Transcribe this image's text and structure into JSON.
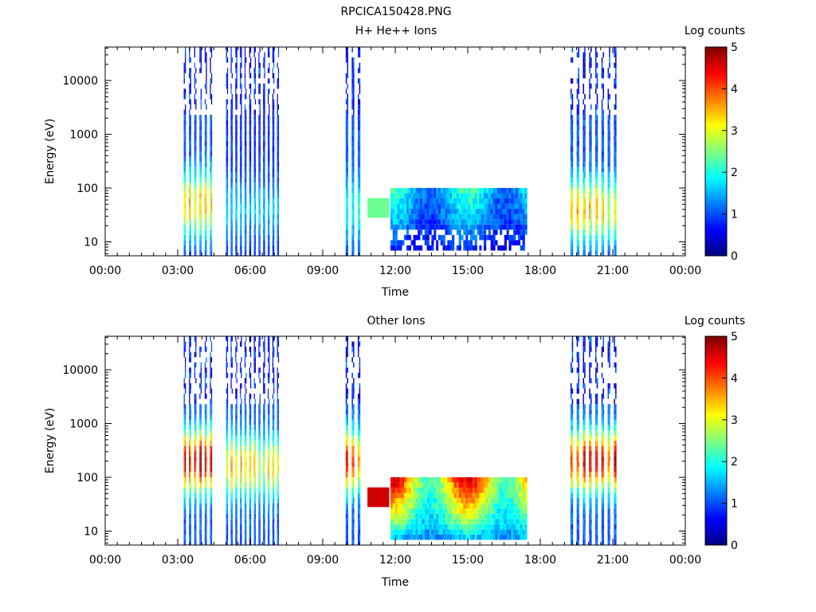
{
  "page_title": "RPCICA150428.PNG",
  "colormap": [
    "#00007f",
    "#0000ff",
    "#007fff",
    "#00ffff",
    "#7fff7f",
    "#ffff00",
    "#ff7f00",
    "#ff0000",
    "#7f0000"
  ],
  "chart_data": [
    {
      "type": "heatmap",
      "title": "H+ He++ Ions",
      "xlabel": "Time",
      "ylabel": "Energy (eV)",
      "xticks": [
        "00:00",
        "03:00",
        "06:00",
        "09:00",
        "12:00",
        "15:00",
        "18:00",
        "21:00",
        "00:00"
      ],
      "xlim_hours": [
        0,
        24
      ],
      "yscale": "log",
      "ylim": [
        5.5,
        42000
      ],
      "yticks": [
        10,
        100,
        1000,
        10000
      ],
      "ytick_labels": [
        "10",
        "100",
        "1000",
        "10000"
      ],
      "colorbar": {
        "label": "Log counts",
        "ticks": [
          "0",
          "1",
          "2",
          "3",
          "4",
          "5"
        ],
        "range": [
          0,
          5
        ]
      },
      "data_segments": [
        {
          "kind": "bursts",
          "t_start": 3.25,
          "t_end": 4.55,
          "n": 6,
          "emax": 40000,
          "peak_log_e": 1.7,
          "peak_val": 3.3,
          "floor_val": 1.0
        },
        {
          "kind": "bursts",
          "t_start": 5.0,
          "t_end": 7.3,
          "n": 12,
          "emax": 40000,
          "peak_log_e": 1.6,
          "peak_val": 1.6,
          "floor_val": 0.8
        },
        {
          "kind": "bursts",
          "t_start": 9.95,
          "t_end": 10.7,
          "n": 3,
          "emax": 40000,
          "peak_log_e": 1.6,
          "peak_val": 2.0,
          "floor_val": 1.0
        },
        {
          "kind": "block",
          "t_start": 10.85,
          "t_end": 11.75,
          "emin": 28,
          "emax": 65,
          "val": 2.4
        },
        {
          "kind": "dense",
          "t_start": 11.8,
          "t_end": 17.45,
          "emin": 6,
          "emax": 100,
          "peak_val": 2.3,
          "floor_val": 0.6,
          "sparse_low": true
        },
        {
          "kind": "bursts",
          "t_start": 19.25,
          "t_end": 21.3,
          "n": 8,
          "emax": 40000,
          "peak_log_e": 1.6,
          "peak_val": 3.2,
          "floor_val": 1.0
        }
      ]
    },
    {
      "type": "heatmap",
      "title": "Other Ions",
      "xlabel": "Time",
      "ylabel": "Energy (eV)",
      "xticks": [
        "00:00",
        "03:00",
        "06:00",
        "09:00",
        "12:00",
        "15:00",
        "18:00",
        "21:00",
        "00:00"
      ],
      "xlim_hours": [
        0,
        24
      ],
      "yscale": "log",
      "ylim": [
        5.5,
        42000
      ],
      "yticks": [
        10,
        100,
        1000,
        10000
      ],
      "ytick_labels": [
        "10",
        "100",
        "1000",
        "10000"
      ],
      "colorbar": {
        "label": "Log counts",
        "ticks": [
          "0",
          "1",
          "2",
          "3",
          "4",
          "5"
        ],
        "range": [
          0,
          5
        ]
      },
      "data_segments": [
        {
          "kind": "bursts",
          "t_start": 3.25,
          "t_end": 4.55,
          "n": 6,
          "emax": 40000,
          "peak_log_e": 2.3,
          "peak_val": 4.7,
          "floor_val": 1.0
        },
        {
          "kind": "bursts",
          "t_start": 5.0,
          "t_end": 7.3,
          "n": 12,
          "emax": 40000,
          "peak_log_e": 2.2,
          "peak_val": 3.2,
          "floor_val": 1.0
        },
        {
          "kind": "bursts",
          "t_start": 9.95,
          "t_end": 10.7,
          "n": 3,
          "emax": 40000,
          "peak_log_e": 2.3,
          "peak_val": 3.9,
          "floor_val": 1.0
        },
        {
          "kind": "block",
          "t_start": 10.85,
          "t_end": 11.75,
          "emin": 28,
          "emax": 65,
          "val": 4.6
        },
        {
          "kind": "dense",
          "t_start": 11.8,
          "t_end": 17.45,
          "emin": 6,
          "emax": 100,
          "peak_val": 4.7,
          "floor_val": 1.2,
          "sparse_low": false
        },
        {
          "kind": "bursts",
          "t_start": 19.25,
          "t_end": 21.3,
          "n": 8,
          "emax": 40000,
          "peak_log_e": 2.3,
          "peak_val": 4.4,
          "floor_val": 1.0
        }
      ]
    }
  ]
}
